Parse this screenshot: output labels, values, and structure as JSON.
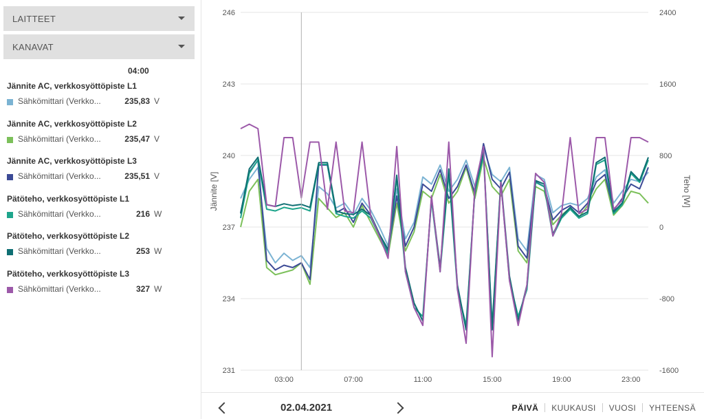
{
  "sidebar": {
    "devices_label": "LAITTEET",
    "channels_label": "KANAVAT",
    "cursor_time": "04:00",
    "channels": [
      {
        "title": "Jännite AC, verkkosyöttöpiste L1",
        "device": "Sähkömittari (Verkko...",
        "value": "235,83",
        "unit": "V",
        "color": "#7bb3d3"
      },
      {
        "title": "Jännite AC, verkkosyöttöpiste L2",
        "device": "Sähkömittari (Verkko...",
        "value": "235,47",
        "unit": "V",
        "color": "#7cc05a"
      },
      {
        "title": "Jännite AC, verkkosyöttöpiste L3",
        "device": "Sähkömittari (Verkko...",
        "value": "235,51",
        "unit": "V",
        "color": "#3c4a96"
      },
      {
        "title": "Pätöteho, verkkosyöttöpiste L1",
        "device": "Sähkömittari (Verkko...",
        "value": "216",
        "unit": "W",
        "color": "#1ea58c"
      },
      {
        "title": "Pätöteho, verkkosyöttöpiste L2",
        "device": "Sähkömittari (Verkko...",
        "value": "253",
        "unit": "W",
        "color": "#0f6f73"
      },
      {
        "title": "Pätöteho, verkkosyöttöpiste L3",
        "device": "Sähkömittari (Verkko...",
        "value": "327",
        "unit": "W",
        "color": "#9c59a9"
      }
    ]
  },
  "footer": {
    "date": "02.04.2021",
    "periods": [
      "PÄIVÄ",
      "KUUKAUSI",
      "VUOSI",
      "YHTEENSÄ"
    ],
    "active_period": "PÄIVÄ",
    "prev_icon": "chevron-left-icon",
    "next_icon": "chevron-right-icon"
  },
  "chart_data": {
    "type": "line",
    "title": "",
    "xlabel": "",
    "ylabel": "Jännite [V]",
    "y2label": "Teho [W]",
    "xlim": [
      0.5,
      24
    ],
    "ylim": [
      231,
      246
    ],
    "y2lim": [
      -1600,
      2400
    ],
    "x_ticks": [
      3,
      7,
      11,
      15,
      19,
      23
    ],
    "x_tick_labels": [
      "03:00",
      "07:00",
      "11:00",
      "15:00",
      "19:00",
      "23:00"
    ],
    "y_ticks": [
      231,
      234,
      237,
      240,
      243,
      246
    ],
    "y2_ticks": [
      -1600,
      -800,
      0,
      800,
      1600,
      2400
    ],
    "cursor_x": 4.0,
    "grid": true,
    "legend": "none",
    "series": [
      {
        "name": "Jännite AC, verkkosyöttöpiste L1",
        "axis": "left",
        "color": "#7bb3d3",
        "x": [
          0.5,
          1,
          1.5,
          2,
          2.5,
          3,
          3.5,
          4,
          4.5,
          5,
          5.5,
          6,
          6.5,
          7,
          7.5,
          8,
          8.5,
          9,
          9.5,
          10,
          10.5,
          11,
          11.5,
          12,
          12.5,
          13,
          13.5,
          14,
          14.5,
          15,
          15.5,
          16,
          16.5,
          17,
          17.5,
          18,
          18.5,
          19,
          19.5,
          20,
          20.5,
          21,
          21.5,
          22,
          22.5,
          23,
          23.5,
          24
        ],
        "y": [
          238.2,
          239.0,
          239.5,
          236.1,
          235.5,
          235.9,
          235.6,
          235.8,
          235.3,
          238.7,
          238.4,
          237.8,
          238.0,
          237.5,
          238.2,
          237.7,
          237.0,
          236.2,
          238.6,
          236.5,
          237.2,
          239.1,
          238.8,
          239.6,
          238.5,
          239.0,
          239.8,
          238.7,
          240.3,
          239.2,
          238.9,
          239.5,
          236.5,
          236.0,
          239.2,
          239.0,
          237.6,
          237.9,
          238.0,
          237.9,
          238.2,
          239.1,
          239.4,
          238.0,
          238.5,
          239.0,
          238.9,
          239.3
        ]
      },
      {
        "name": "Jännite AC, verkkosyöttöpiste L2",
        "axis": "left",
        "color": "#7cc05a",
        "x": [
          0.5,
          1,
          1.5,
          2,
          2.5,
          3,
          3.5,
          4,
          4.5,
          5,
          5.5,
          6,
          6.5,
          7,
          7.5,
          8,
          8.5,
          9,
          9.5,
          10,
          10.5,
          11,
          11.5,
          12,
          12.5,
          13,
          13.5,
          14,
          14.5,
          15,
          15.5,
          16,
          16.5,
          17,
          17.5,
          18,
          18.5,
          19,
          19.5,
          20,
          20.5,
          21,
          21.5,
          22,
          22.5,
          23,
          23.5,
          24
        ],
        "y": [
          237.0,
          238.5,
          239.0,
          235.3,
          235.0,
          235.1,
          235.2,
          235.5,
          234.6,
          238.2,
          237.8,
          237.4,
          237.6,
          237.0,
          237.9,
          237.2,
          236.5,
          235.8,
          238.0,
          236.0,
          236.8,
          238.5,
          238.2,
          239.2,
          238.0,
          238.5,
          239.5,
          238.2,
          239.9,
          238.7,
          238.3,
          239.0,
          236.0,
          235.5,
          238.7,
          238.5,
          237.1,
          237.5,
          237.8,
          237.4,
          237.9,
          238.6,
          239.0,
          237.5,
          237.9,
          238.5,
          238.4,
          238.0
        ]
      },
      {
        "name": "Jännite AC, verkkosyöttöpiste L3",
        "axis": "left",
        "color": "#3c4a96",
        "x": [
          0.5,
          1,
          1.5,
          2,
          2.5,
          3,
          3.5,
          4,
          4.5,
          5,
          5.5,
          6,
          6.5,
          7,
          7.5,
          8,
          8.5,
          9,
          9.5,
          10,
          10.5,
          11,
          11.5,
          12,
          12.5,
          13,
          13.5,
          14,
          14.5,
          15,
          15.5,
          16,
          16.5,
          17,
          17.5,
          18,
          18.5,
          19,
          19.5,
          20,
          20.5,
          21,
          21.5,
          22,
          22.5,
          23,
          23.5,
          24
        ],
        "y": [
          237.6,
          239.3,
          239.8,
          235.6,
          235.2,
          235.4,
          235.3,
          235.5,
          234.8,
          239.6,
          239.6,
          237.6,
          237.8,
          237.2,
          238.0,
          237.5,
          236.7,
          236.0,
          238.3,
          236.2,
          237.0,
          238.8,
          238.5,
          239.4,
          238.2,
          238.7,
          239.6,
          238.4,
          240.5,
          239.0,
          238.6,
          239.3,
          236.2,
          235.7,
          238.9,
          238.7,
          237.3,
          237.7,
          237.9,
          237.6,
          238.0,
          238.9,
          239.2,
          237.7,
          238.2,
          238.8,
          238.6,
          239.5
        ]
      },
      {
        "name": "Pätöteho, verkkosyöttöpiste L1",
        "axis": "right",
        "color": "#1ea58c",
        "x": [
          0.5,
          1,
          1.5,
          2,
          2.5,
          3,
          3.5,
          4,
          4.5,
          5,
          5.5,
          6,
          6.5,
          7,
          7.5,
          8,
          8.5,
          9,
          9.5,
          10,
          10.5,
          11,
          11.5,
          12,
          12.5,
          13,
          13.5,
          14,
          14.5,
          15,
          15.5,
          16,
          16.5,
          17,
          17.5,
          18,
          18.5,
          19,
          19.5,
          20,
          20.5,
          21,
          21.5,
          22,
          22.5,
          23,
          23.5,
          24
        ],
        "y": [
          100,
          600,
          750,
          200,
          180,
          220,
          200,
          216,
          180,
          700,
          700,
          150,
          120,
          100,
          180,
          100,
          -100,
          -300,
          550,
          -500,
          -900,
          -1000,
          300,
          -500,
          600,
          -700,
          -1100,
          400,
          800,
          -1100,
          500,
          -600,
          -1000,
          -700,
          500,
          450,
          -100,
          100,
          200,
          100,
          150,
          700,
          750,
          150,
          250,
          600,
          500,
          750
        ]
      },
      {
        "name": "Pätöteho, verkkosyöttöpiste L2",
        "axis": "right",
        "color": "#0f6f73",
        "x": [
          0.5,
          1,
          1.5,
          2,
          2.5,
          3,
          3.5,
          4,
          4.5,
          5,
          5.5,
          6,
          6.5,
          7,
          7.5,
          8,
          8.5,
          9,
          9.5,
          10,
          10.5,
          11,
          11.5,
          12,
          12.5,
          13,
          13.5,
          14,
          14.5,
          15,
          15.5,
          16,
          16.5,
          17,
          17.5,
          18,
          18.5,
          19,
          19.5,
          20,
          20.5,
          21,
          21.5,
          22,
          22.5,
          23,
          23.5,
          24
        ],
        "y": [
          150,
          650,
          780,
          250,
          230,
          260,
          240,
          253,
          220,
          720,
          720,
          180,
          150,
          140,
          200,
          130,
          -80,
          -250,
          580,
          -450,
          -850,
          -1050,
          330,
          -450,
          650,
          -650,
          -1150,
          420,
          850,
          -1150,
          520,
          -550,
          -1050,
          -650,
          520,
          480,
          -80,
          120,
          220,
          120,
          170,
          720,
          780,
          170,
          270,
          620,
          520,
          780
        ]
      },
      {
        "name": "Pätöteho, verkkosyöttöpiste L3",
        "axis": "right",
        "color": "#9c59a9",
        "x": [
          0.5,
          1,
          1.5,
          2,
          2.5,
          3,
          3.5,
          4,
          4.5,
          5,
          5.5,
          6,
          6.5,
          7,
          7.5,
          8,
          8.5,
          9,
          9.5,
          10,
          10.5,
          11,
          11.5,
          12,
          12.5,
          13,
          13.5,
          14,
          14.5,
          15,
          15.5,
          16,
          16.5,
          17,
          17.5,
          18,
          18.5,
          19,
          19.5,
          20,
          20.5,
          21,
          21.5,
          22,
          22.5,
          23,
          23.5,
          24
        ],
        "y": [
          1100,
          1150,
          1100,
          250,
          230,
          1000,
          1000,
          327,
          950,
          950,
          200,
          950,
          180,
          160,
          950,
          120,
          -100,
          -350,
          900,
          -500,
          -900,
          -1100,
          350,
          -500,
          950,
          -700,
          -1300,
          450,
          900,
          -1450,
          500,
          -600,
          -1100,
          -650,
          600,
          500,
          -100,
          150,
          1000,
          150,
          200,
          1000,
          1000,
          200,
          300,
          1000,
          1000,
          950
        ]
      }
    ]
  }
}
